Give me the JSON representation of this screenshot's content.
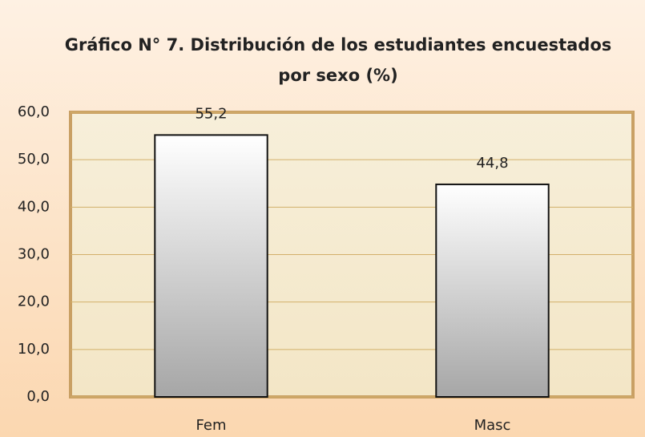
{
  "chart_data": {
    "type": "bar",
    "title": [
      "Gráfico  N° 7. Distribución de los estudiantes encuestados",
      "por sexo (%)"
    ],
    "categories": [
      "Fem",
      "Masc"
    ],
    "values": [
      55.2,
      44.8
    ],
    "value_labels": [
      "55,2",
      "44,8"
    ],
    "ylim": [
      0,
      60
    ],
    "yticks": [
      {
        "value": 0,
        "label": "0,0"
      },
      {
        "value": 10,
        "label": "10,0"
      },
      {
        "value": 20,
        "label": "20,0"
      },
      {
        "value": 30,
        "label": "30,0"
      },
      {
        "value": 40,
        "label": "40,0"
      },
      {
        "value": 50,
        "label": "50,0"
      },
      {
        "value": 60,
        "label": "60,0"
      }
    ],
    "grid": true
  }
}
